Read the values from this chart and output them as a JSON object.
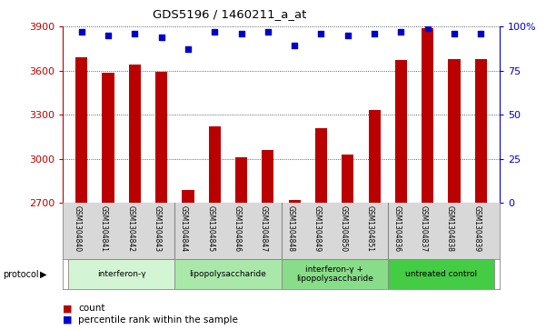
{
  "title": "GDS5196 / 1460211_a_at",
  "samples": [
    "GSM1304840",
    "GSM1304841",
    "GSM1304842",
    "GSM1304843",
    "GSM1304844",
    "GSM1304845",
    "GSM1304846",
    "GSM1304847",
    "GSM1304848",
    "GSM1304849",
    "GSM1304850",
    "GSM1304851",
    "GSM1304836",
    "GSM1304837",
    "GSM1304838",
    "GSM1304839"
  ],
  "counts": [
    3690,
    3585,
    3640,
    3590,
    2790,
    3220,
    3010,
    3060,
    2720,
    3210,
    3030,
    3330,
    3670,
    3890,
    3680,
    3680
  ],
  "percentiles": [
    97,
    95,
    96,
    94,
    87,
    97,
    96,
    97,
    89,
    96,
    95,
    96,
    97,
    99,
    96,
    96
  ],
  "groups": [
    {
      "label": "interferon-γ",
      "start": 0,
      "end": 4,
      "color": "#d4f5d4"
    },
    {
      "label": "lipopolysaccharide",
      "start": 4,
      "end": 8,
      "color": "#aae8aa"
    },
    {
      "label": "interferon-γ +\nlipopolysaccharide",
      "start": 8,
      "end": 12,
      "color": "#88dd88"
    },
    {
      "label": "untreated control",
      "start": 12,
      "end": 16,
      "color": "#44cc44"
    }
  ],
  "ylim_left": [
    2700,
    3900
  ],
  "ylim_right": [
    0,
    100
  ],
  "bar_color": "#bb0000",
  "dot_color": "#0000cc",
  "grid_color": "#333333",
  "background_color": "#ffffff",
  "bar_width": 0.45,
  "tick_left": [
    2700,
    3000,
    3300,
    3600,
    3900
  ],
  "tick_right": [
    0,
    25,
    50,
    75,
    100
  ],
  "tick_right_labels": [
    "0",
    "25",
    "50",
    "75",
    "100%"
  ],
  "label_bg_color": "#d8d8d8",
  "label_sep_color": "#888888"
}
